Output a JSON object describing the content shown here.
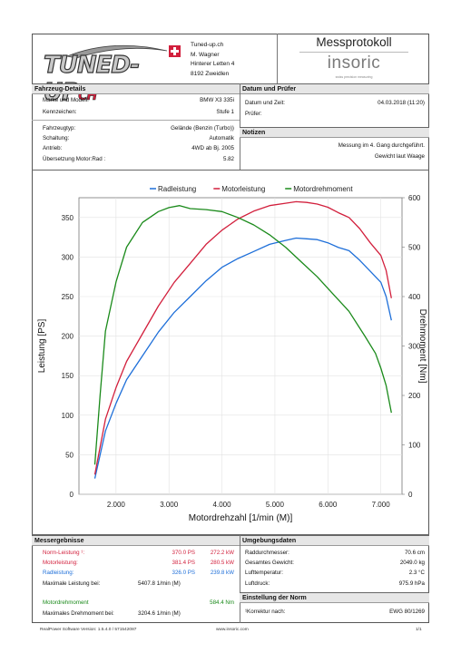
{
  "header": {
    "logo_text": "TUNED-UP",
    "logo_suffix": "CH",
    "company": [
      "Tuned-up.ch",
      "M. Wagner",
      "Hinterer Letten 4",
      "8192 Zweidlen"
    ],
    "doc_title": "Messprotokoll",
    "brand": "insoric",
    "brand_tagline": "swiss precision measuring"
  },
  "vehicle": {
    "title": "Fahrzeug-Details",
    "rows": [
      {
        "label": "Marke und Modell:",
        "value": "BMW X3 335i"
      },
      {
        "label": "Kennzeichen:",
        "value": "Stufe 1"
      },
      {
        "label": "Fahrzeugtyp:",
        "value": "Gelände (Benzin (Turbo))"
      },
      {
        "label": "Schaltung:",
        "value": "Automatik"
      },
      {
        "label": "Antrieb:",
        "value": "4WD ab Bj. 2005"
      },
      {
        "label": "Übersetzung Motor:Rad :",
        "value": "5.82"
      }
    ]
  },
  "date_tester": {
    "title": "Datum und Prüfer",
    "date_label": "Datum und Zeit:",
    "date_value": "04.03.2018 (11:20)",
    "tester_label": "Prüfer:",
    "tester_value": ""
  },
  "notes": {
    "title": "Notizen",
    "lines": [
      "Messung im 4. Gang durchgeführt.",
      "Gewicht laut Waage"
    ]
  },
  "chart_data": {
    "type": "line",
    "xlabel": "Motordrehzahl [1/min (M)]",
    "ylabel_left": "Leistung [PS]",
    "ylabel_right": "Drehmoment [Nm]",
    "xlim": [
      1300,
      7400
    ],
    "ylim_left": [
      0,
      375
    ],
    "ylim_right": [
      0,
      600
    ],
    "x_ticks": [
      2000,
      3000,
      4000,
      5000,
      6000,
      7000
    ],
    "x_tick_labels": [
      "2.000",
      "3.000",
      "4.000",
      "5.000",
      "6.000",
      "7.000"
    ],
    "y_left_ticks": [
      0,
      50,
      100,
      150,
      200,
      250,
      300,
      350
    ],
    "y_right_ticks": [
      0,
      100,
      200,
      300,
      400,
      500,
      600
    ],
    "grid": true,
    "legend_position": "top",
    "series": [
      {
        "name": "Radleistung",
        "color": "#1e6fd9",
        "axis": "left",
        "x": [
          1600,
          1800,
          2000,
          2200,
          2500,
          2800,
          3100,
          3400,
          3700,
          4000,
          4300,
          4600,
          4900,
          5200,
          5400,
          5600,
          5800,
          6000,
          6200,
          6400,
          6600,
          6800,
          7000,
          7100,
          7200
        ],
        "y": [
          20,
          80,
          115,
          145,
          175,
          205,
          230,
          250,
          270,
          287,
          298,
          307,
          316,
          321,
          324,
          323,
          322,
          318,
          312,
          308,
          296,
          282,
          268,
          250,
          220
        ]
      },
      {
        "name": "Motorleistung",
        "color": "#d21f3c",
        "axis": "left",
        "x": [
          1600,
          1800,
          2000,
          2200,
          2500,
          2800,
          3100,
          3400,
          3700,
          4000,
          4300,
          4600,
          4900,
          5200,
          5400,
          5600,
          5800,
          6000,
          6200,
          6400,
          6600,
          6800,
          7000,
          7100,
          7200
        ],
        "y": [
          25,
          95,
          135,
          168,
          203,
          238,
          268,
          292,
          316,
          334,
          348,
          358,
          365,
          368,
          370,
          369,
          367,
          363,
          356,
          350,
          336,
          318,
          302,
          283,
          248
        ]
      },
      {
        "name": "Motordrehmoment",
        "color": "#1a8a1a",
        "axis": "right",
        "x": [
          1600,
          1700,
          1800,
          2000,
          2200,
          2500,
          2800,
          3000,
          3200,
          3400,
          3700,
          4000,
          4300,
          4600,
          4900,
          5200,
          5500,
          5800,
          6100,
          6400,
          6700,
          6900,
          7000,
          7100,
          7200
        ],
        "y": [
          60,
          200,
          330,
          430,
          500,
          550,
          572,
          580,
          584,
          578,
          576,
          572,
          560,
          545,
          525,
          500,
          470,
          440,
          405,
          370,
          320,
          285,
          255,
          220,
          165
        ]
      }
    ]
  },
  "results": {
    "title": "Messergebnisse",
    "rows": [
      {
        "label": "Norm-Leistung ¹:",
        "ps": "370.0 PS",
        "kw": "272.2 kW",
        "color": "#d21f3c"
      },
      {
        "label": "Motorleistung:",
        "ps": "381.4 PS",
        "kw": "280.5 kW",
        "color": "#d21f3c"
      },
      {
        "label": "Radleistung:",
        "ps": "326.0 PS",
        "kw": "239.8 kW",
        "color": "#1e6fd9"
      }
    ],
    "max_power_label": "Maximale Leistung bei:",
    "max_power_value": "5407.8 1/min (M)",
    "torque_label": "Motordrehmoment",
    "torque_value": "584.4 Nm",
    "max_torque_label": "Maximales Drehmoment bei:",
    "max_torque_value": "3204.6 1/min (M)"
  },
  "environment": {
    "title": "Umgebungsdaten",
    "rows": [
      {
        "label": "Raddurchmesser:",
        "value": "70.6 cm"
      },
      {
        "label": "Gesamtes Gewicht:",
        "value": "2049.0 kg"
      },
      {
        "label": "Lufttemperatur:",
        "value": "2.3 °C"
      },
      {
        "label": "Luftdruck:",
        "value": "975.9 hPa"
      }
    ]
  },
  "norm": {
    "title": "Einstellung der Norm",
    "label": "¹Korrektur nach:",
    "value": "EWG 80/1269"
  },
  "footer": {
    "software": "RealPower Software Version: 1.5.4.0 / 571542087",
    "website": "www.insoric.com",
    "page": "1/1"
  }
}
